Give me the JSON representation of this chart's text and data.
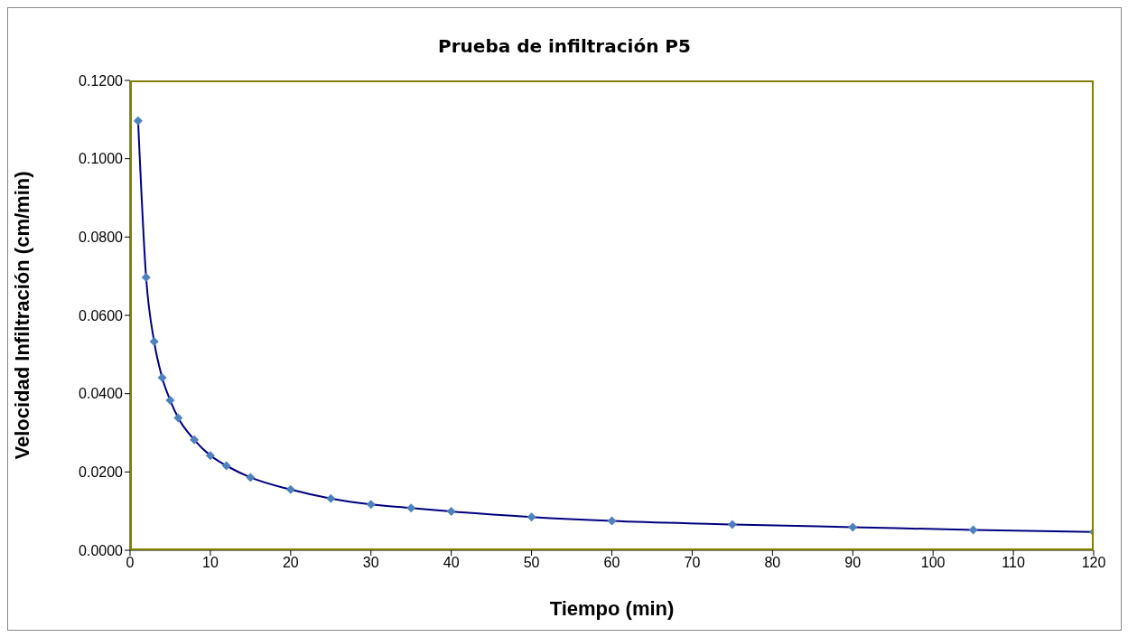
{
  "chart_data": {
    "type": "line",
    "title": "Prueba de infiltración P5",
    "xlabel": "Tiempo (min)",
    "ylabel": "Velocidad Infiltración (cm/min)",
    "x": [
      1,
      2,
      3,
      4,
      5,
      6,
      8,
      10,
      12,
      15,
      20,
      25,
      30,
      35,
      40,
      50,
      60,
      75,
      90,
      105,
      120
    ],
    "series": [
      {
        "color": "#000080",
        "values": [
          0.1097,
          0.0697,
          0.0533,
          0.0441,
          0.0383,
          0.0338,
          0.0282,
          0.0242,
          0.0216,
          0.0186,
          0.0155,
          0.0132,
          0.0117,
          0.0108,
          0.0099,
          0.0085,
          0.0075,
          0.0066,
          0.0059,
          0.0052,
          0.0047
        ]
      }
    ],
    "xlim": [
      0,
      120
    ],
    "xticks": [
      0,
      10,
      20,
      30,
      40,
      50,
      60,
      70,
      80,
      90,
      100,
      110,
      120
    ],
    "ylim": [
      0,
      0.12
    ],
    "yticks": [
      {
        "value": 0,
        "label": "0.0000"
      },
      {
        "value": 0.02,
        "label": "0.0200"
      },
      {
        "value": 0.04,
        "label": "0.0400"
      },
      {
        "value": 0.06,
        "label": "0.0600"
      },
      {
        "value": 0.08,
        "label": "0.0800"
      },
      {
        "value": 0.1,
        "label": "0.1000"
      },
      {
        "value": 0.12,
        "label": "0.1200"
      }
    ],
    "grid": false,
    "legend": false,
    "marker": "diamond",
    "line_style": "solid"
  }
}
